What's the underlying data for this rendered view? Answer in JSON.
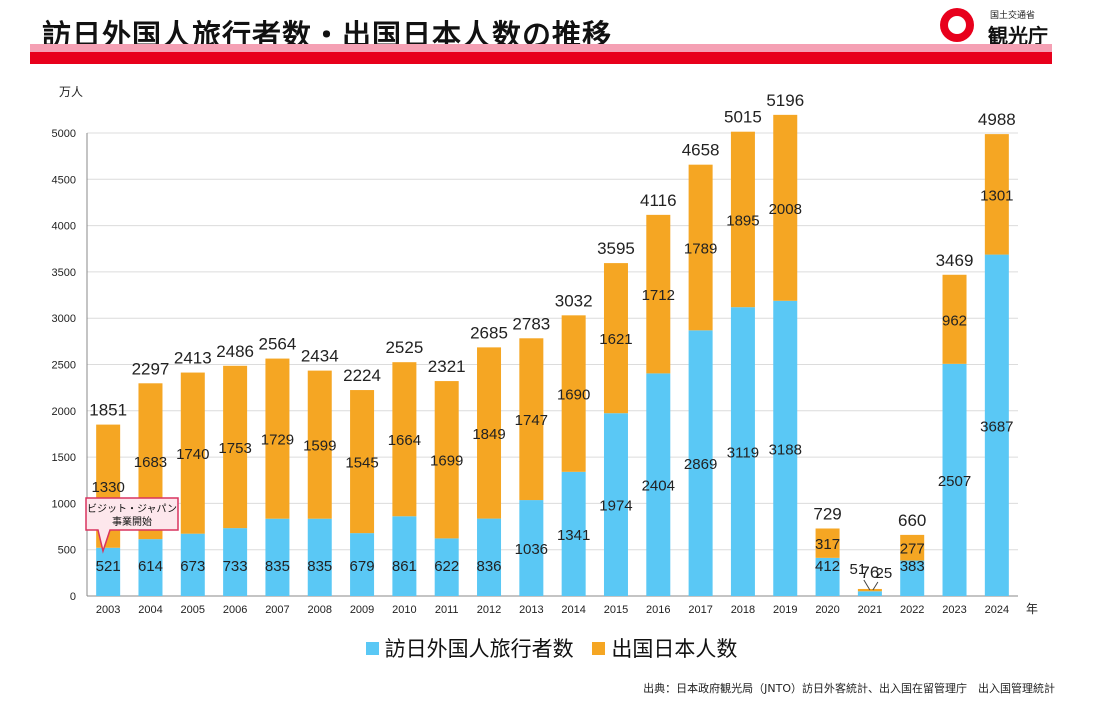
{
  "header": {
    "title": "訪日外国人旅行者数・出国日本人数の推移",
    "logo_small": "国土交通省",
    "logo_big": "観光庁"
  },
  "colors": {
    "inbound": "#5ac8f5",
    "outbound": "#f5a623",
    "accent": "#e8001c",
    "accent_light": "#f5a0b4"
  },
  "callout": {
    "line1": "ビジット・ジャパン",
    "line2": "事業開始"
  },
  "source": "出典：日本政府観光局（JNTO）訪日外客統計、出入国在留管理庁　出入国管理統計",
  "chart_data": {
    "type": "bar",
    "stacked": true,
    "ylabel": "万人",
    "xlabel": "年",
    "ylim": [
      0,
      5000
    ],
    "yticks": [
      0,
      500,
      1000,
      1500,
      2000,
      2500,
      3000,
      3500,
      4000,
      4500,
      5000
    ],
    "grid": true,
    "legend_position": "bottom",
    "categories": [
      "2003",
      "2004",
      "2005",
      "2006",
      "2007",
      "2008",
      "2009",
      "2010",
      "2011",
      "2012",
      "2013",
      "2014",
      "2015",
      "2016",
      "2017",
      "2018",
      "2019",
      "2020",
      "2021",
      "2022",
      "2023",
      "2024"
    ],
    "series": [
      {
        "name": "訪日外国人旅行者数",
        "color": "#5ac8f5",
        "values": [
          521,
          614,
          673,
          733,
          835,
          835,
          679,
          861,
          622,
          836,
          1036,
          1341,
          1974,
          2404,
          2869,
          3119,
          3188,
          412,
          51,
          383,
          2507,
          3687
        ]
      },
      {
        "name": "出国日本人数",
        "color": "#f5a623",
        "values": [
          1330,
          1683,
          1740,
          1753,
          1729,
          1599,
          1545,
          1664,
          1699,
          1849,
          1747,
          1690,
          1621,
          1712,
          1789,
          1895,
          2008,
          317,
          25,
          277,
          962,
          1301
        ]
      }
    ],
    "totals": [
      1851,
      2297,
      2413,
      2486,
      2564,
      2434,
      2224,
      2525,
      2321,
      2685,
      2783,
      3032,
      3595,
      4116,
      4658,
      5015,
      5196,
      729,
      76,
      660,
      3469,
      4988
    ]
  }
}
